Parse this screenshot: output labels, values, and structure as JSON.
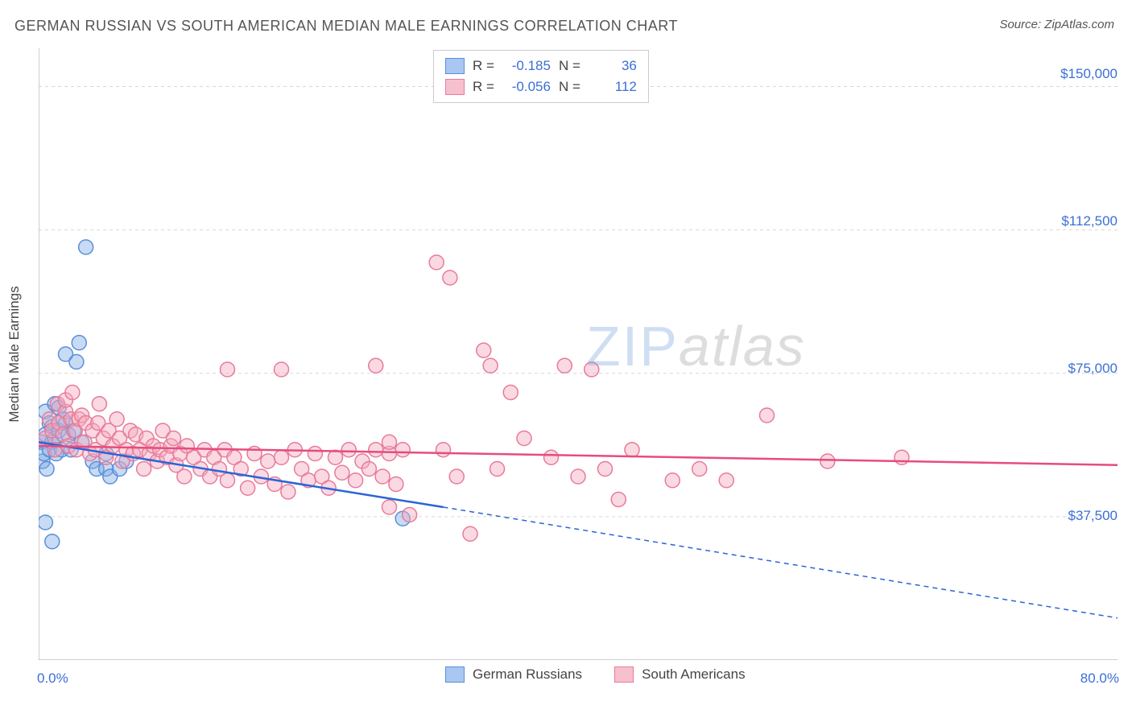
{
  "title": "GERMAN RUSSIAN VS SOUTH AMERICAN MEDIAN MALE EARNINGS CORRELATION CHART",
  "source": "Source: ZipAtlas.com",
  "y_axis_label": "Median Male Earnings",
  "watermark": {
    "zip": "ZIP",
    "atlas": "atlas"
  },
  "chart": {
    "type": "scatter",
    "xlim": [
      0,
      80
    ],
    "ylim": [
      0,
      160000
    ],
    "background_color": "#ffffff",
    "grid_color": "#d8d8d8",
    "axis_color": "#bdbdbd",
    "tick_color": "#bdbdbd",
    "x_ticks": [
      0,
      5,
      10,
      15,
      20,
      25,
      30,
      35,
      40,
      45,
      50,
      55,
      60,
      65,
      70,
      75,
      80
    ],
    "x_tick_labels": [
      {
        "value": 0,
        "label": "0.0%"
      },
      {
        "value": 80,
        "label": "80.0%"
      }
    ],
    "y_ticks": [
      0,
      37500,
      75000,
      112500,
      150000
    ],
    "y_tick_labels": [
      {
        "value": 37500,
        "label": "$37,500"
      },
      {
        "value": 75000,
        "label": "$75,000"
      },
      {
        "value": 112500,
        "label": "$112,500"
      },
      {
        "value": 150000,
        "label": "$150,000"
      }
    ],
    "marker_radius": 9,
    "marker_stroke_width": 1.5,
    "tick_label_fontsize": 17,
    "tick_label_color": "#3b6fd6",
    "legend_top": {
      "rows": [
        {
          "swatch_fill": "#a9c7f0",
          "swatch_stroke": "#5a8fd8",
          "r_label": "R =",
          "r_value": "-0.185",
          "n_label": "N =",
          "n_value": "36"
        },
        {
          "swatch_fill": "#f7c0ce",
          "swatch_stroke": "#e87a9a",
          "r_label": "R =",
          "r_value": "-0.056",
          "n_label": "N =",
          "n_value": "112"
        }
      ]
    },
    "legend_bottom": {
      "items": [
        {
          "swatch_fill": "#a9c7f0",
          "swatch_stroke": "#5a8fd8",
          "label": "German Russians"
        },
        {
          "swatch_fill": "#f7c0ce",
          "swatch_stroke": "#e87a9a",
          "label": "South Americans"
        }
      ]
    },
    "series": [
      {
        "name": "german_russians",
        "fill": "rgba(130,175,230,0.45)",
        "stroke": "#5a8fd8",
        "trend": {
          "color": "#2a64d8",
          "width": 2.5,
          "x_solid_start": 0,
          "y_solid_start": 57000,
          "x_solid_end": 30,
          "y_solid_end": 40000,
          "x_dash_end": 80,
          "y_dash_end": 11000,
          "dash": "6,5"
        },
        "points": [
          [
            0.2,
            57000
          ],
          [
            0.3,
            52000
          ],
          [
            0.4,
            54000
          ],
          [
            0.5,
            59000
          ],
          [
            0.5,
            65000
          ],
          [
            0.6,
            50000
          ],
          [
            0.8,
            55000
          ],
          [
            0.8,
            62000
          ],
          [
            1.0,
            61000
          ],
          [
            1.0,
            57000
          ],
          [
            1.2,
            67000
          ],
          [
            1.2,
            58000
          ],
          [
            1.3,
            54000
          ],
          [
            1.5,
            60000
          ],
          [
            1.5,
            66000
          ],
          [
            1.7,
            55000
          ],
          [
            1.8,
            63000
          ],
          [
            2.0,
            62000
          ],
          [
            2.0,
            80000
          ],
          [
            2.2,
            59000
          ],
          [
            2.4,
            55000
          ],
          [
            2.6,
            60000
          ],
          [
            2.8,
            78000
          ],
          [
            3.0,
            83000
          ],
          [
            3.2,
            57000
          ],
          [
            3.5,
            108000
          ],
          [
            4.0,
            52000
          ],
          [
            4.3,
            50000
          ],
          [
            5.0,
            50000
          ],
          [
            5.0,
            54000
          ],
          [
            5.3,
            48000
          ],
          [
            6.0,
            50000
          ],
          [
            6.5,
            52000
          ],
          [
            0.5,
            36000
          ],
          [
            1.0,
            31000
          ],
          [
            27.0,
            37000
          ]
        ]
      },
      {
        "name": "south_americans",
        "fill": "rgba(245,170,190,0.45)",
        "stroke": "#e87a9a",
        "trend": {
          "color": "#e64c7f",
          "width": 2.5,
          "x_solid_start": 0,
          "y_solid_start": 56000,
          "x_solid_end": 80,
          "y_solid_end": 51000,
          "x_dash_end": 80,
          "y_dash_end": 51000,
          "dash": ""
        },
        "points": [
          [
            0.5,
            58000
          ],
          [
            0.8,
            63000
          ],
          [
            1.0,
            60000
          ],
          [
            1.2,
            55000
          ],
          [
            1.4,
            67000
          ],
          [
            1.5,
            62000
          ],
          [
            1.8,
            59000
          ],
          [
            2.0,
            65000
          ],
          [
            2.0,
            68000
          ],
          [
            2.2,
            56000
          ],
          [
            2.4,
            63000
          ],
          [
            2.5,
            70000
          ],
          [
            2.7,
            60000
          ],
          [
            2.8,
            55000
          ],
          [
            3.0,
            63000
          ],
          [
            3.2,
            64000
          ],
          [
            3.4,
            57000
          ],
          [
            3.5,
            62000
          ],
          [
            3.8,
            54000
          ],
          [
            4.0,
            60000
          ],
          [
            4.2,
            55000
          ],
          [
            4.4,
            62000
          ],
          [
            4.5,
            67000
          ],
          [
            4.8,
            58000
          ],
          [
            5.0,
            53000
          ],
          [
            5.2,
            60000
          ],
          [
            5.5,
            56000
          ],
          [
            5.8,
            63000
          ],
          [
            6.0,
            58000
          ],
          [
            6.2,
            52000
          ],
          [
            6.5,
            55000
          ],
          [
            6.8,
            60000
          ],
          [
            7.0,
            54000
          ],
          [
            7.2,
            59000
          ],
          [
            7.5,
            55000
          ],
          [
            7.8,
            50000
          ],
          [
            8.0,
            58000
          ],
          [
            8.2,
            54000
          ],
          [
            8.5,
            56000
          ],
          [
            8.8,
            52000
          ],
          [
            9.0,
            55000
          ],
          [
            9.2,
            60000
          ],
          [
            9.5,
            53000
          ],
          [
            9.8,
            56000
          ],
          [
            10.0,
            58000
          ],
          [
            10.2,
            51000
          ],
          [
            10.5,
            54000
          ],
          [
            10.8,
            48000
          ],
          [
            11.0,
            56000
          ],
          [
            11.5,
            53000
          ],
          [
            12.0,
            50000
          ],
          [
            12.3,
            55000
          ],
          [
            12.7,
            48000
          ],
          [
            13.0,
            53000
          ],
          [
            13.4,
            50000
          ],
          [
            13.8,
            55000
          ],
          [
            14.0,
            47000
          ],
          [
            14.5,
            53000
          ],
          [
            15.0,
            50000
          ],
          [
            15.5,
            45000
          ],
          [
            16.0,
            54000
          ],
          [
            16.5,
            48000
          ],
          [
            17.0,
            52000
          ],
          [
            17.5,
            46000
          ],
          [
            18.0,
            53000
          ],
          [
            18.5,
            44000
          ],
          [
            19.0,
            55000
          ],
          [
            19.5,
            50000
          ],
          [
            20.0,
            47000
          ],
          [
            20.5,
            54000
          ],
          [
            21.0,
            48000
          ],
          [
            21.5,
            45000
          ],
          [
            22.0,
            53000
          ],
          [
            22.5,
            49000
          ],
          [
            23.0,
            55000
          ],
          [
            23.5,
            47000
          ],
          [
            24.0,
            52000
          ],
          [
            24.5,
            50000
          ],
          [
            25.0,
            55000
          ],
          [
            25.5,
            48000
          ],
          [
            26.0,
            54000
          ],
          [
            26.5,
            46000
          ],
          [
            27.0,
            55000
          ],
          [
            14.0,
            76000
          ],
          [
            18.0,
            76000
          ],
          [
            25.0,
            77000
          ],
          [
            26.0,
            57000
          ],
          [
            29.5,
            104000
          ],
          [
            30.5,
            100000
          ],
          [
            30.0,
            55000
          ],
          [
            31.0,
            48000
          ],
          [
            32.0,
            33000
          ],
          [
            33.0,
            81000
          ],
          [
            33.5,
            77000
          ],
          [
            34.0,
            50000
          ],
          [
            35.0,
            70000
          ],
          [
            36.0,
            58000
          ],
          [
            38.0,
            53000
          ],
          [
            39.0,
            77000
          ],
          [
            40.0,
            48000
          ],
          [
            41.0,
            76000
          ],
          [
            42.0,
            50000
          ],
          [
            43.0,
            42000
          ],
          [
            44.0,
            55000
          ],
          [
            47.0,
            47000
          ],
          [
            49.0,
            50000
          ],
          [
            51.0,
            47000
          ],
          [
            54.0,
            64000
          ],
          [
            58.5,
            52000
          ],
          [
            26.0,
            40000
          ],
          [
            27.5,
            38000
          ],
          [
            64.0,
            53000
          ]
        ]
      }
    ]
  }
}
